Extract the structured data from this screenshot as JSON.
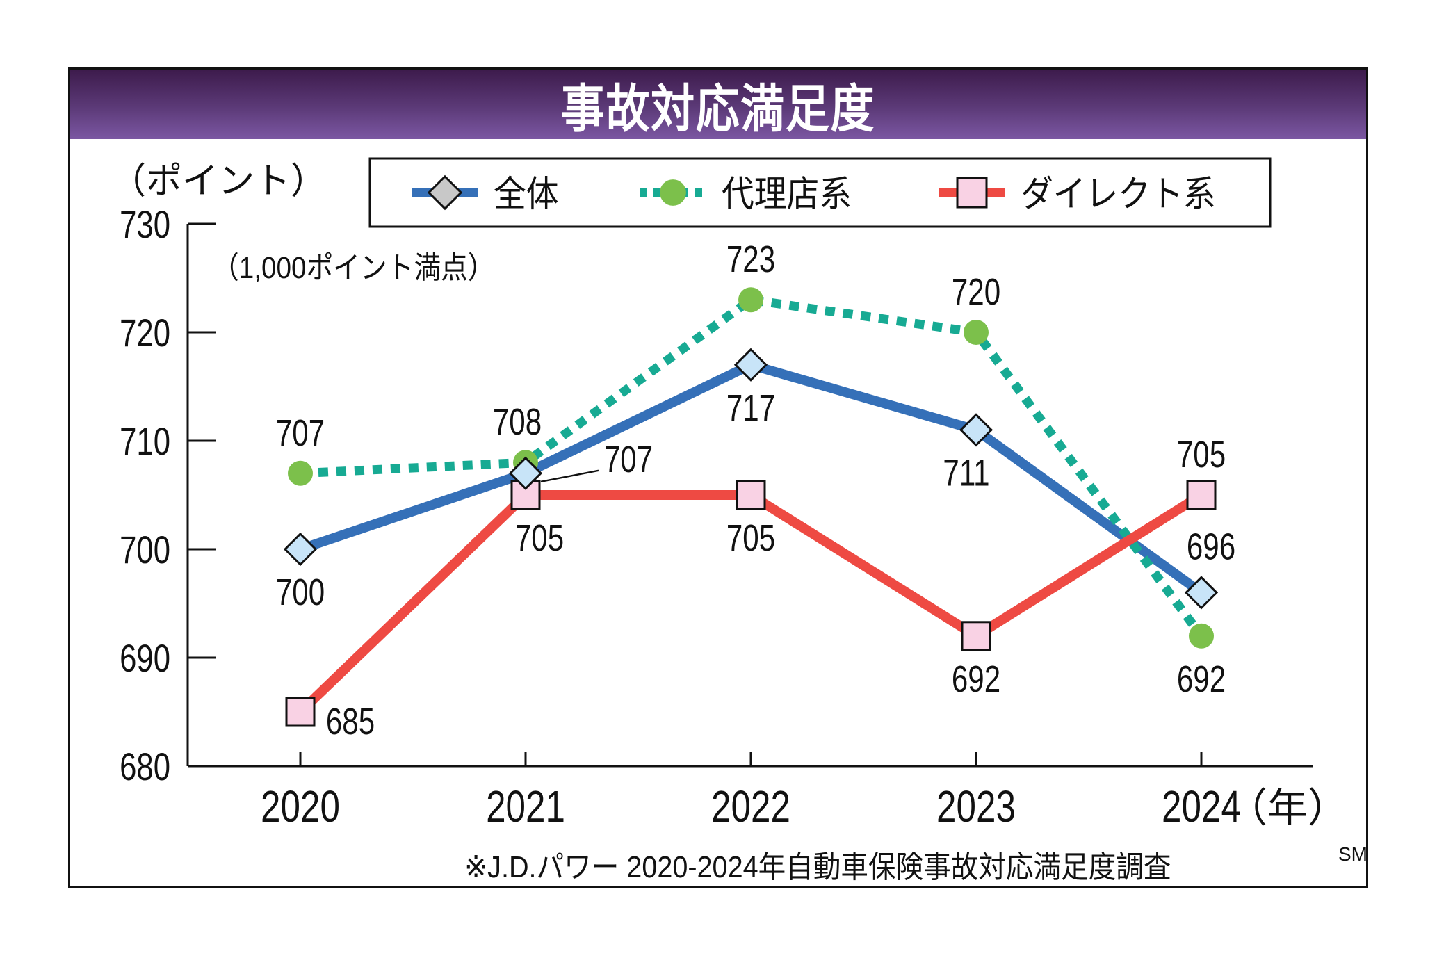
{
  "title": "事故対応満足度",
  "chart_data": {
    "type": "line",
    "title": "事故対応満足度",
    "ylabel": "（ポイント）",
    "xlabel": "（年）",
    "note": "（1,000ポイント満点）",
    "source": "※J.D.パワー  2020-2024年自動車保険事故対応満足度調査",
    "source_superscript": "SM",
    "categories": [
      "2020",
      "2021",
      "2022",
      "2023",
      "2024"
    ],
    "ylim": [
      680,
      730
    ],
    "yticks": [
      680,
      690,
      700,
      710,
      720,
      730
    ],
    "ytick_labels": [
      "680",
      "690",
      "700",
      "710",
      "720",
      "730"
    ],
    "grid": false,
    "legend_position": "top",
    "series": [
      {
        "name": "全体",
        "values": [
          700,
          707,
          717,
          711,
          696
        ],
        "color": "#3570b8",
        "marker": "diamond",
        "marker_fill": "#c8e4f8",
        "legend_marker_fill": "#c8c8c8",
        "line_style": "solid",
        "labels": [
          "700",
          "707",
          "717",
          "711",
          "696"
        ]
      },
      {
        "name": "代理店系",
        "values": [
          707,
          708,
          723,
          720,
          692
        ],
        "color": "#17aa93",
        "marker": "circle",
        "marker_fill": "#7cc04b",
        "line_style": "dotted",
        "labels": [
          "707",
          "708",
          "723",
          "720",
          "692"
        ]
      },
      {
        "name": "ダイレクト系",
        "values": [
          685,
          705,
          705,
          692,
          705
        ],
        "color": "#ee4a43",
        "marker": "square",
        "marker_fill": "#f9d2e4",
        "line_style": "solid",
        "labels": [
          "685",
          "705",
          "705",
          "692",
          "705"
        ]
      }
    ]
  }
}
